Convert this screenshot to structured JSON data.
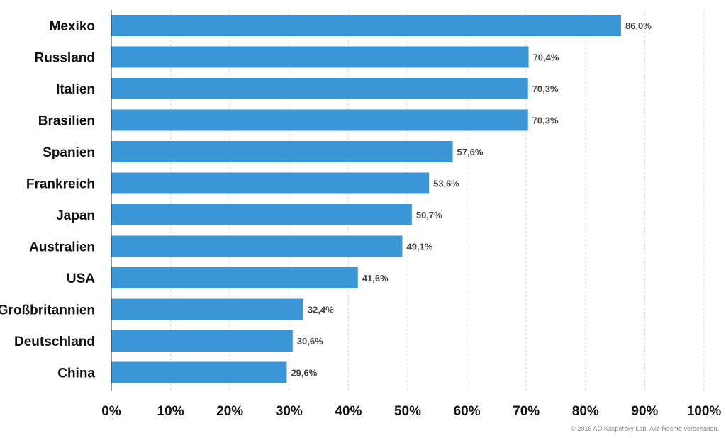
{
  "chart_data": {
    "type": "bar",
    "orientation": "horizontal",
    "categories": [
      "Mexiko",
      "Russland",
      "Italien",
      "Brasilien",
      "Spanien",
      "Frankreich",
      "Japan",
      "Australien",
      "USA",
      "Großbritannien",
      "Deutschland",
      "China"
    ],
    "values": [
      86.0,
      70.4,
      70.3,
      70.3,
      57.6,
      53.6,
      50.7,
      49.1,
      41.6,
      32.4,
      30.6,
      29.6
    ],
    "value_labels": [
      "86,0%",
      "70,4%",
      "70,3%",
      "70,3%",
      "57,6%",
      "53,6%",
      "50,7%",
      "49,1%",
      "41,6%",
      "32,4%",
      "30,6%",
      "29,6%"
    ],
    "xlim": [
      0,
      100
    ],
    "xticks": [
      0,
      10,
      20,
      30,
      40,
      50,
      60,
      70,
      80,
      90,
      100
    ],
    "xtick_labels": [
      "0%",
      "10%",
      "20%",
      "30%",
      "40%",
      "50%",
      "60%",
      "70%",
      "80%",
      "90%",
      "100%"
    ],
    "grid": true,
    "bar_color": "#3b96d8",
    "title": "",
    "xlabel": "",
    "ylabel": ""
  },
  "copyright": "© 2016 AO Kaspersky Lab. Alle Rechte vorbehalten."
}
